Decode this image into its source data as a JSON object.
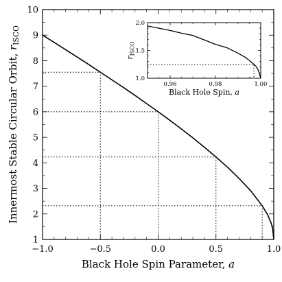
{
  "chart_data": [
    {
      "type": "line",
      "role": "main",
      "xlabel": "Black Hole Spin Parameter, a",
      "xlabel_main": "Black Hole Spin Parameter, ",
      "xlabel_var": "a",
      "ylabel": "Innermost Stable Circular Orbit, r_ISCO",
      "ylabel_main": "Innermost Stable Circular Orbit, ",
      "ylabel_var": "r",
      "ylabel_sub": "ISCO",
      "xlim": [
        -1.0,
        1.0
      ],
      "ylim": [
        1,
        10
      ],
      "xticks": [
        -1.0,
        -0.5,
        0.0,
        0.5,
        1.0
      ],
      "xtick_labels": [
        "−1.0",
        "−0.5",
        "0.0",
        "0.5",
        "1.0"
      ],
      "yticks": [
        1,
        2,
        3,
        4,
        5,
        6,
        7,
        8,
        9,
        10
      ],
      "ytick_labels": [
        "1",
        "2",
        "3",
        "4",
        "5",
        "6",
        "7",
        "8",
        "9",
        "10"
      ],
      "series": [
        {
          "x": [
            -1.0,
            -0.9,
            -0.8,
            -0.7,
            -0.6,
            -0.5,
            -0.4,
            -0.3,
            -0.2,
            -0.1,
            0.0,
            0.1,
            0.2,
            0.3,
            0.4,
            0.5,
            0.6,
            0.7,
            0.8,
            0.9,
            0.95,
            0.98,
            0.99,
            1.0
          ],
          "y": [
            9.0,
            8.72,
            8.43,
            8.14,
            7.85,
            7.55,
            7.25,
            6.95,
            6.64,
            6.32,
            6.0,
            5.67,
            5.33,
            4.98,
            4.61,
            4.23,
            3.83,
            3.39,
            2.91,
            2.32,
            1.94,
            1.61,
            1.45,
            1.0
          ]
        }
      ],
      "reference_points": [
        {
          "x": -0.5,
          "y": 7.55
        },
        {
          "x": 0.0,
          "y": 6.0
        },
        {
          "x": 0.5,
          "y": 4.23
        },
        {
          "x": 0.9,
          "y": 2.32
        }
      ],
      "grid": false
    },
    {
      "type": "line",
      "role": "inset",
      "xlabel": "Black Hole Spin, a",
      "xlabel_main": "Black Hole Spin, ",
      "xlabel_var": "a",
      "ylabel": "r_ISCO",
      "ylabel_var": "r",
      "ylabel_sub": "ISCO",
      "xlim": [
        0.95,
        1.0
      ],
      "ylim": [
        1.0,
        2.0
      ],
      "xticks": [
        0.96,
        0.98,
        1.0
      ],
      "xtick_labels": [
        "0.96",
        "0.98",
        "1.00"
      ],
      "yticks": [
        1.0,
        1.5,
        2.0
      ],
      "ytick_labels": [
        "1.0",
        "1.5",
        "2.0"
      ],
      "series": [
        {
          "x": [
            0.95,
            0.955,
            0.96,
            0.965,
            0.97,
            0.975,
            0.98,
            0.985,
            0.99,
            0.993,
            0.995,
            0.997,
            0.998,
            0.999,
            1.0
          ],
          "y": [
            1.94,
            1.9,
            1.86,
            1.81,
            1.77,
            1.69,
            1.61,
            1.55,
            1.45,
            1.38,
            1.32,
            1.25,
            1.21,
            1.14,
            1.0
          ]
        }
      ],
      "reference_points": [
        {
          "x": 0.997,
          "y": 1.24
        }
      ],
      "grid": false
    }
  ]
}
